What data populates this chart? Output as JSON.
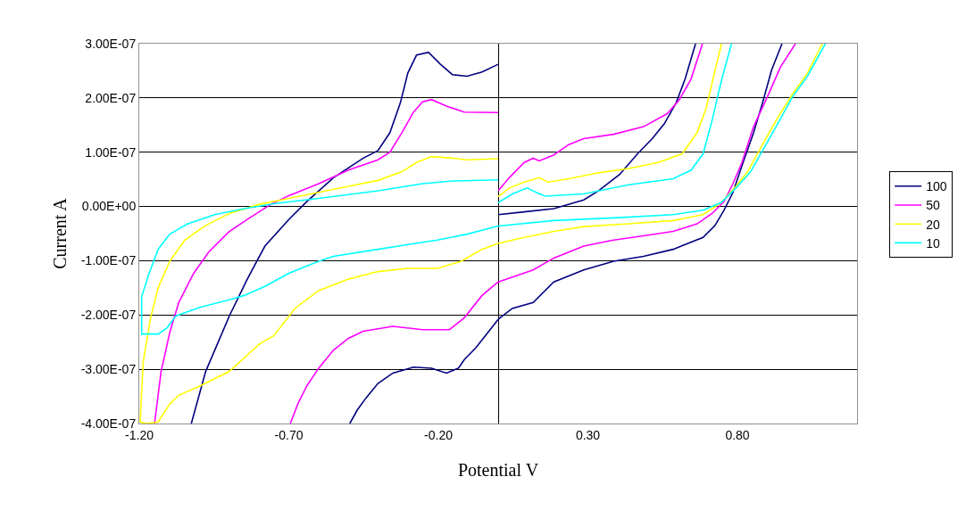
{
  "chart_data": {
    "type": "line",
    "xlabel": "Potential V",
    "ylabel": "Current A",
    "xlim": [
      -1.2,
      1.2
    ],
    "ylim": [
      -4e-07,
      3e-07
    ],
    "xticks": [
      {
        "value": -1.2,
        "label": "-1.20"
      },
      {
        "value": -0.7,
        "label": "-0.70"
      },
      {
        "value": -0.2,
        "label": "-0.20"
      },
      {
        "value": 0.3,
        "label": "0.30"
      },
      {
        "value": 0.8,
        "label": "0.80"
      }
    ],
    "yticks": [
      {
        "value": 3e-07,
        "label": "3.00E-07"
      },
      {
        "value": 2e-07,
        "label": "2.00E-07"
      },
      {
        "value": 1e-07,
        "label": "1.00E-07"
      },
      {
        "value": 0,
        "label": "0.00E+00"
      },
      {
        "value": -1e-07,
        "label": "-1.00E-07"
      },
      {
        "value": -2e-07,
        "label": "-2.00E-07"
      },
      {
        "value": -3e-07,
        "label": "-3.00E-07"
      },
      {
        "value": -4e-07,
        "label": "-4.00E-07"
      }
    ],
    "grid": "y",
    "legend": "right",
    "marker": "none",
    "line_style": "solid",
    "series": [
      {
        "name": "100",
        "color": "#000080",
        "x": [
          -1.026,
          -0.978,
          -0.899,
          -0.839,
          -0.78,
          -0.7,
          -0.64,
          -0.551,
          -0.451,
          -0.402,
          -0.362,
          -0.327,
          -0.302,
          -0.273,
          -0.233,
          -0.193,
          -0.153,
          -0.104,
          -0.054,
          0.0,
          null,
          0.0,
          -0.034,
          -0.074,
          -0.113,
          -0.133,
          -0.173,
          -0.223,
          -0.283,
          -0.352,
          -0.402,
          -0.442,
          -0.471,
          -0.496,
          null,
          0.0,
          0.087,
          0.186,
          0.286,
          0.336,
          0.406,
          0.466,
          0.515,
          0.555,
          0.595,
          0.625,
          0.66,
          null,
          0.0,
          0.047,
          0.117,
          0.186,
          0.286,
          0.386,
          0.486,
          0.585,
          0.685,
          0.725,
          0.755,
          0.785,
          0.815,
          0.854,
          0.884,
          0.914,
          0.949
        ],
        "values": [
          -4e-07,
          -3.04e-07,
          -2.02e-07,
          -1.34e-07,
          -7.3e-08,
          -2.4e-08,
          9e-09,
          5.3e-08,
          8.9e-08,
          1.03e-07,
          1.36e-07,
          1.91e-07,
          2.46e-07,
          2.79e-07,
          2.84e-07,
          2.62e-07,
          2.43e-07,
          2.4e-07,
          2.48e-07,
          2.62e-07,
          null,
          -2.08e-07,
          -2.32e-07,
          -2.6e-07,
          -2.82e-07,
          -2.98e-07,
          -3.07e-07,
          -2.98e-07,
          -2.96e-07,
          -3.07e-07,
          -3.26e-07,
          -3.53e-07,
          -3.75e-07,
          -4e-07,
          null,
          -1.5e-08,
          -1e-08,
          -4e-09,
          1.2e-08,
          2.9e-08,
          5.9e-08,
          9.7e-08,
          1.25e-07,
          1.52e-07,
          1.91e-07,
          2.35e-07,
          3e-07,
          null,
          -2.08e-07,
          -1.88e-07,
          -1.77e-07,
          -1.39e-07,
          -1.17e-07,
          -1.01e-07,
          -9.2e-08,
          -7.9e-08,
          -5.7e-08,
          -3.5e-08,
          -7e-09,
          2.6e-08,
          7.5e-08,
          1.36e-07,
          1.91e-07,
          2.51e-07,
          3e-07
        ]
      },
      {
        "name": "50",
        "color": "#ff00ff",
        "x": [
          -1.149,
          -1.127,
          -1.098,
          -1.068,
          -1.018,
          -0.968,
          -0.899,
          -0.839,
          -0.76,
          -0.7,
          -0.6,
          -0.501,
          -0.402,
          -0.362,
          -0.322,
          -0.283,
          -0.253,
          -0.223,
          -0.173,
          -0.113,
          0.0,
          null,
          0.0,
          -0.054,
          -0.113,
          -0.163,
          -0.253,
          -0.352,
          -0.451,
          -0.501,
          -0.551,
          -0.6,
          -0.64,
          -0.67,
          -0.695,
          null,
          0.0,
          0.037,
          0.087,
          0.117,
          0.137,
          0.186,
          0.236,
          0.286,
          0.386,
          0.486,
          0.565,
          0.605,
          0.645,
          0.683,
          null,
          0.0,
          0.117,
          0.186,
          0.286,
          0.386,
          0.486,
          0.585,
          0.665,
          0.715,
          0.755,
          0.785,
          0.815,
          0.854,
          0.904,
          0.944,
          0.994
        ],
        "values": [
          -4e-07,
          -3.04e-07,
          -2.32e-07,
          -1.77e-07,
          -1.23e-07,
          -8.4e-08,
          -4.6e-08,
          -2.4e-08,
          4e-09,
          2e-08,
          4.2e-08,
          6.7e-08,
          8.6e-08,
          1e-07,
          1.36e-07,
          1.74e-07,
          1.93e-07,
          1.97e-07,
          1.85e-07,
          1.74e-07,
          1.73e-07,
          null,
          -1.39e-07,
          -1.64e-07,
          -2.05e-07,
          -2.27e-07,
          -2.27e-07,
          -2.21e-07,
          -2.3e-07,
          -2.43e-07,
          -2.65e-07,
          -2.98e-07,
          -3.31e-07,
          -3.64e-07,
          -4e-07,
          null,
          2.9e-08,
          5.3e-08,
          8.1e-08,
          8.9e-08,
          8.4e-08,
          9.5e-08,
          1.14e-07,
          1.25e-07,
          1.33e-07,
          1.47e-07,
          1.71e-07,
          1.96e-07,
          2.35e-07,
          3e-07,
          null,
          -1.39e-07,
          -1.17e-07,
          -9.5e-08,
          -7.3e-08,
          -6.2e-08,
          -5.4e-08,
          -4.6e-08,
          -3.2e-08,
          -1.3e-08,
          9e-09,
          4.2e-08,
          8.1e-08,
          1.47e-07,
          2.07e-07,
          2.57e-07,
          3e-07
        ]
      },
      {
        "name": "20",
        "color": "#ffff00",
        "x": [
          0.0,
          -0.054,
          -0.124,
          -0.203,
          -0.302,
          -0.402,
          -0.501,
          -0.6,
          -0.68,
          -0.75,
          -0.799,
          -0.899,
          -0.998,
          -1.068,
          -1.098,
          -1.137,
          -1.177,
          -1.197,
          -1.187,
          -1.162,
          -1.137,
          -1.098,
          -1.048,
          -0.978,
          -0.899,
          -0.799,
          -0.7,
          -0.6,
          -0.501,
          -0.402,
          -0.322,
          -0.273,
          -0.223,
          -0.153,
          -0.104,
          0.0,
          null,
          0.0,
          0.037,
          0.087,
          0.137,
          0.167,
          0.236,
          0.336,
          0.436,
          0.535,
          0.615,
          0.665,
          0.695,
          0.725,
          0.747,
          null,
          0.0,
          0.087,
          0.186,
          0.286,
          0.436,
          0.585,
          0.685,
          0.745,
          0.795,
          0.834,
          0.884,
          0.934,
          0.984,
          1.034,
          1.084
        ],
        "values": [
          -6.8e-08,
          -7.9e-08,
          -1.01e-07,
          -1.14e-07,
          -1.14e-07,
          -1.2e-07,
          -1.34e-07,
          -1.55e-07,
          -1.88e-07,
          -2.38e-07,
          -2.54e-07,
          -3.04e-07,
          -3.31e-07,
          -3.48e-07,
          -3.64e-07,
          -3.97e-07,
          -4e-07,
          -3.97e-07,
          -2.87e-07,
          -2.05e-07,
          -1.5e-07,
          -1.01e-07,
          -6.2e-08,
          -3.5e-08,
          -1.3e-08,
          4e-09,
          1.5e-08,
          2.6e-08,
          3.7e-08,
          4.8e-08,
          6.4e-08,
          8.1e-08,
          9.2e-08,
          8.9e-08,
          8.6e-08,
          8.8e-08,
          null,
          1.8e-08,
          3.4e-08,
          4.5e-08,
          5.3e-08,
          4.5e-08,
          5.1e-08,
          6.2e-08,
          7e-08,
          8.1e-08,
          9.7e-08,
          1.36e-07,
          1.8e-07,
          2.51e-07,
          3e-07,
          null,
          -6.8e-08,
          -5.7e-08,
          -4.6e-08,
          -3.7e-08,
          -3.2e-08,
          -2.6e-08,
          -1.5e-08,
          7e-09,
          3.7e-08,
          6.4e-08,
          1.14e-07,
          1.63e-07,
          2.07e-07,
          2.46e-07,
          3e-07
        ]
      },
      {
        "name": "10",
        "color": "#00ffff",
        "x": [
          0.0,
          -0.104,
          -0.203,
          -0.302,
          -0.402,
          -0.551,
          -0.6,
          -0.7,
          -0.779,
          -0.849,
          -0.899,
          -0.998,
          -1.078,
          -1.108,
          -1.137,
          -1.192,
          -1.192,
          -1.167,
          -1.137,
          -1.098,
          -1.038,
          -0.948,
          -0.849,
          -0.75,
          -0.6,
          -0.402,
          -0.253,
          -0.153,
          0.0,
          null,
          0.0,
          0.047,
          0.097,
          0.127,
          0.157,
          0.286,
          0.436,
          0.585,
          0.645,
          0.685,
          0.715,
          0.745,
          0.78,
          null,
          0.0,
          0.186,
          0.386,
          0.585,
          0.685,
          0.745,
          0.795,
          0.844,
          0.884,
          0.934,
          0.984,
          1.034,
          1.094
        ],
        "values": [
          -3.6e-08,
          -5.1e-08,
          -6.2e-08,
          -7e-08,
          -7.9e-08,
          -9.2e-08,
          -1.01e-07,
          -1.23e-07,
          -1.47e-07,
          -1.64e-07,
          -1.72e-07,
          -1.86e-07,
          -2.02e-07,
          -2.24e-07,
          -2.35e-07,
          -2.35e-07,
          -1.66e-07,
          -1.23e-07,
          -7.9e-08,
          -5.1e-08,
          -3.2e-08,
          -1.5e-08,
          -4e-09,
          5e-09,
          1.5e-08,
          2.9e-08,
          4.2e-08,
          4.7e-08,
          4.9e-08,
          null,
          7e-09,
          2.3e-08,
          3.4e-08,
          2.6e-08,
          1.9e-08,
          2.3e-08,
          4e-08,
          5.1e-08,
          6.7e-08,
          9.7e-08,
          1.58e-07,
          2.29e-07,
          3e-07,
          null,
          -3.6e-08,
          -2.6e-08,
          -2.1e-08,
          -1.5e-08,
          -7e-09,
          7e-09,
          3.4e-08,
          6.4e-08,
          1.03e-07,
          1.52e-07,
          2.02e-07,
          2.4e-07,
          3e-07
        ]
      }
    ]
  }
}
